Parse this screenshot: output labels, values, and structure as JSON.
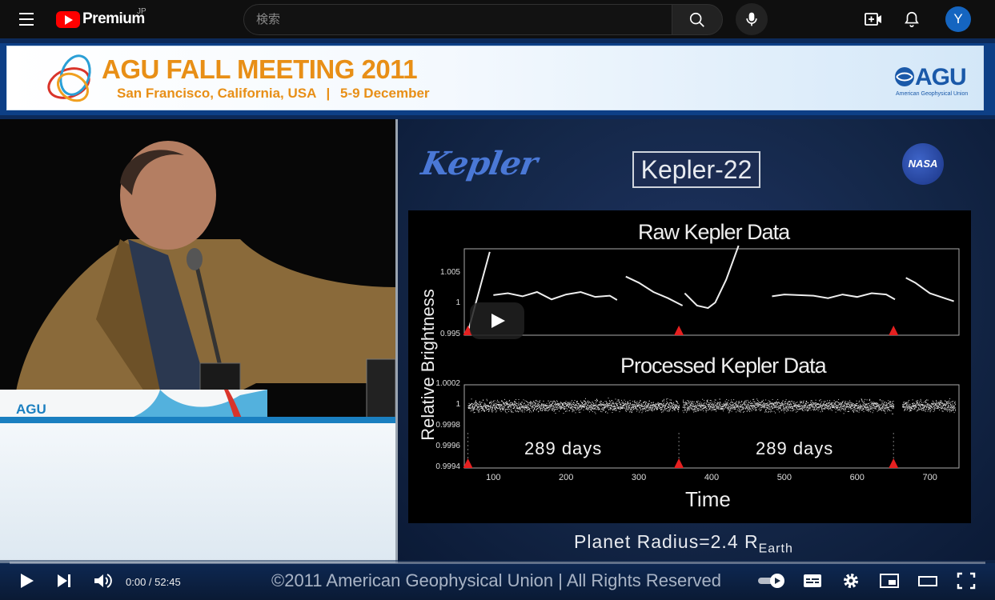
{
  "header": {
    "logo_text": "Premium",
    "region": "JP",
    "search_placeholder": "検索",
    "avatar_letter": "Y"
  },
  "video": {
    "banner": {
      "title": "AGU FALL MEETING 2011",
      "location": "San Francisco, California, USA",
      "dates": "5-9 December",
      "org_short": "AGU",
      "org_full": "American Geophysical Union"
    },
    "podium_label": "AGU",
    "slide": {
      "mission_logo": "Kepler",
      "title": "Kepler-22",
      "agency_logo": "NASA",
      "footer_prefix": "Planet Radius=2.4 R",
      "footer_sub": "Earth"
    },
    "copyright": "©2011 American Geophysical Union | All Rights Reserved"
  },
  "chart_data": [
    {
      "type": "line",
      "title": "Raw Kepler Data",
      "ylabel": "Relative Brightness",
      "xlabel": "Time",
      "yticks": [
        "1.005",
        "1",
        "0.995"
      ],
      "ylim": [
        0.995,
        1.009
      ],
      "xlim": [
        60,
        740
      ],
      "segments": [
        {
          "x": [
            65,
            95
          ],
          "y": [
            0.9955,
            1.0085
          ]
        },
        {
          "x": [
            100,
            120,
            140,
            160,
            180,
            200,
            220,
            240,
            260,
            270
          ],
          "y": [
            1.0015,
            1.0018,
            1.0013,
            1.002,
            1.0008,
            1.0016,
            1.002,
            1.0012,
            1.0014,
            1.0007
          ]
        },
        {
          "x": [
            282,
            300,
            320,
            340,
            360
          ],
          "y": [
            1.0045,
            1.0035,
            1.002,
            1.001,
            0.9998
          ]
        },
        {
          "x": [
            363,
            380,
            395,
            405,
            420,
            437
          ],
          "y": [
            1.0018,
            0.9998,
            0.9994,
            1.0003,
            1.004,
            1.0095
          ]
        },
        {
          "x": [
            483,
            500,
            520,
            540,
            560,
            580,
            600,
            620,
            640,
            652
          ],
          "y": [
            1.0013,
            1.0016,
            1.0015,
            1.0014,
            1.001,
            1.0016,
            1.0012,
            1.0018,
            1.0016,
            1.0008
          ]
        },
        {
          "x": [
            667,
            680,
            700,
            720,
            733
          ],
          "y": [
            1.0043,
            1.0035,
            1.0018,
            1.001,
            1.0005
          ]
        }
      ],
      "transit_markers": [
        65,
        355,
        650
      ]
    },
    {
      "type": "scatter",
      "title": "Processed Kepler Data",
      "yticks": [
        "1.0002",
        "1",
        "0.9998",
        "0.9996",
        "0.9994"
      ],
      "xticks": [
        "100",
        "200",
        "300",
        "400",
        "500",
        "600",
        "700"
      ],
      "ylim": [
        0.9994,
        1.0002
      ],
      "xlim": [
        60,
        740
      ],
      "baseline": 1.0,
      "scatter_band": 8e-05,
      "data_ranges": [
        [
          65,
          355
        ],
        [
          360,
          650
        ],
        [
          662,
          735
        ]
      ],
      "transit_markers": [
        65,
        355,
        650
      ],
      "annotations": [
        "289 days",
        "289 days"
      ]
    }
  ],
  "controls": {
    "current_time": "0:00",
    "separator": " / ",
    "duration": "52:45",
    "progress": 0.0
  }
}
